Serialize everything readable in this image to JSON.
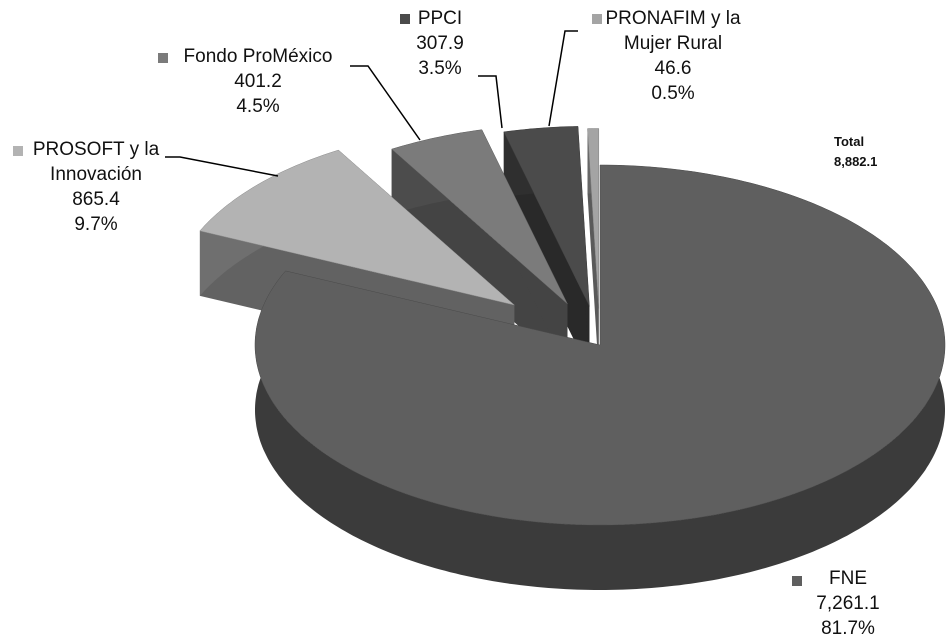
{
  "chart_data": {
    "type": "pie",
    "categories": [
      "FNE",
      "PROSOFT y la Innovación",
      "Fondo ProMéxico",
      "PPCI",
      "PRONAFIM y la Mujer Rural"
    ],
    "values": [
      7261.1,
      865.4,
      401.2,
      307.9,
      46.6
    ],
    "value_labels": [
      "7,261.1",
      "865.4",
      "401.2",
      "307.9",
      "46.6"
    ],
    "percent_labels": [
      "81.7%",
      "9.7%",
      "4.5%",
      "3.5%",
      "0.5%"
    ],
    "colors": [
      "#5f5f5f",
      "#b3b3b3",
      "#7b7b7b",
      "#4b4b4b",
      "#a4a4a4"
    ],
    "total_label": "Total",
    "total": "8,882.1"
  }
}
